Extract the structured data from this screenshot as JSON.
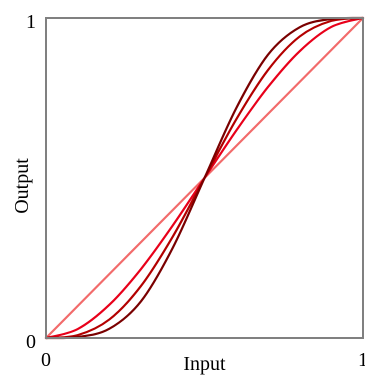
{
  "chart_data": {
    "type": "line",
    "title": "",
    "xlabel": "Input",
    "ylabel": "Output",
    "xlim": [
      0,
      1
    ],
    "ylim": [
      0,
      1
    ],
    "x_ticks": [
      {
        "value": 0,
        "label": "0"
      },
      {
        "value": 1,
        "label": "1"
      }
    ],
    "y_ticks": [
      {
        "value": 0,
        "label": "0"
      },
      {
        "value": 1,
        "label": "1"
      }
    ],
    "grid": false,
    "x": [
      0,
      0.1,
      0.2,
      0.3,
      0.4,
      0.5,
      0.6,
      0.7,
      0.8,
      0.9,
      1
    ],
    "series": [
      {
        "color": "#f26b6b",
        "values": [
          0,
          0.1,
          0.2,
          0.3,
          0.4,
          0.5,
          0.6,
          0.7,
          0.8,
          0.9,
          1
        ]
      },
      {
        "color": "#e8001a",
        "values": [
          0,
          0.028,
          0.104,
          0.216,
          0.352,
          0.5,
          0.648,
          0.784,
          0.896,
          0.972,
          1
        ]
      },
      {
        "color": "#b30000",
        "values": [
          0,
          0.009,
          0.058,
          0.163,
          0.317,
          0.5,
          0.683,
          0.837,
          0.942,
          0.991,
          1
        ]
      },
      {
        "color": "#7a0000",
        "values": [
          0,
          0.003,
          0.029,
          0.115,
          0.282,
          0.5,
          0.718,
          0.885,
          0.971,
          0.997,
          1
        ]
      }
    ],
    "axis_color": "#808080"
  }
}
